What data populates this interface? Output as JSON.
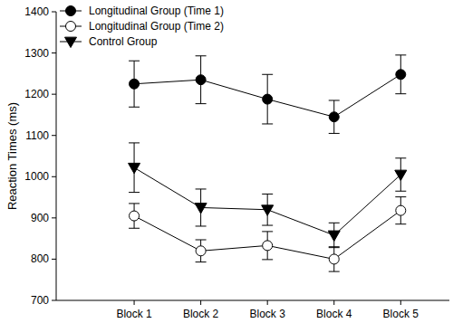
{
  "chart_data": {
    "type": "line",
    "y_label": "Reaction Times (ms)",
    "categories": [
      "Block 1",
      "Block 2",
      "Block 3",
      "Block 4",
      "Block 5"
    ],
    "series": [
      {
        "name": "Longitudinal Group (Time 1)",
        "color": "#000000",
        "marker": "circle",
        "values": [
          1225,
          1235,
          1188,
          1145,
          1248
        ],
        "errors": [
          56,
          58,
          60,
          40,
          47
        ]
      },
      {
        "name": "Longitudinal Group (Time 2)",
        "color": "#000000",
        "marker": "open_circle",
        "values": [
          905,
          820,
          833,
          800,
          918
        ],
        "errors": [
          30,
          27,
          34,
          30,
          33
        ]
      },
      {
        "name": "Control Group",
        "color": "#000000",
        "marker": "triangle_down",
        "values": [
          1022,
          925,
          920,
          858,
          1005
        ],
        "errors": [
          60,
          45,
          38,
          30,
          40
        ]
      }
    ],
    "ylim": [
      700,
      1400
    ],
    "yticks": [
      700,
      800,
      900,
      1000,
      1100,
      1200,
      1300,
      1400
    ],
    "legend": "upper left",
    "grid": false
  }
}
